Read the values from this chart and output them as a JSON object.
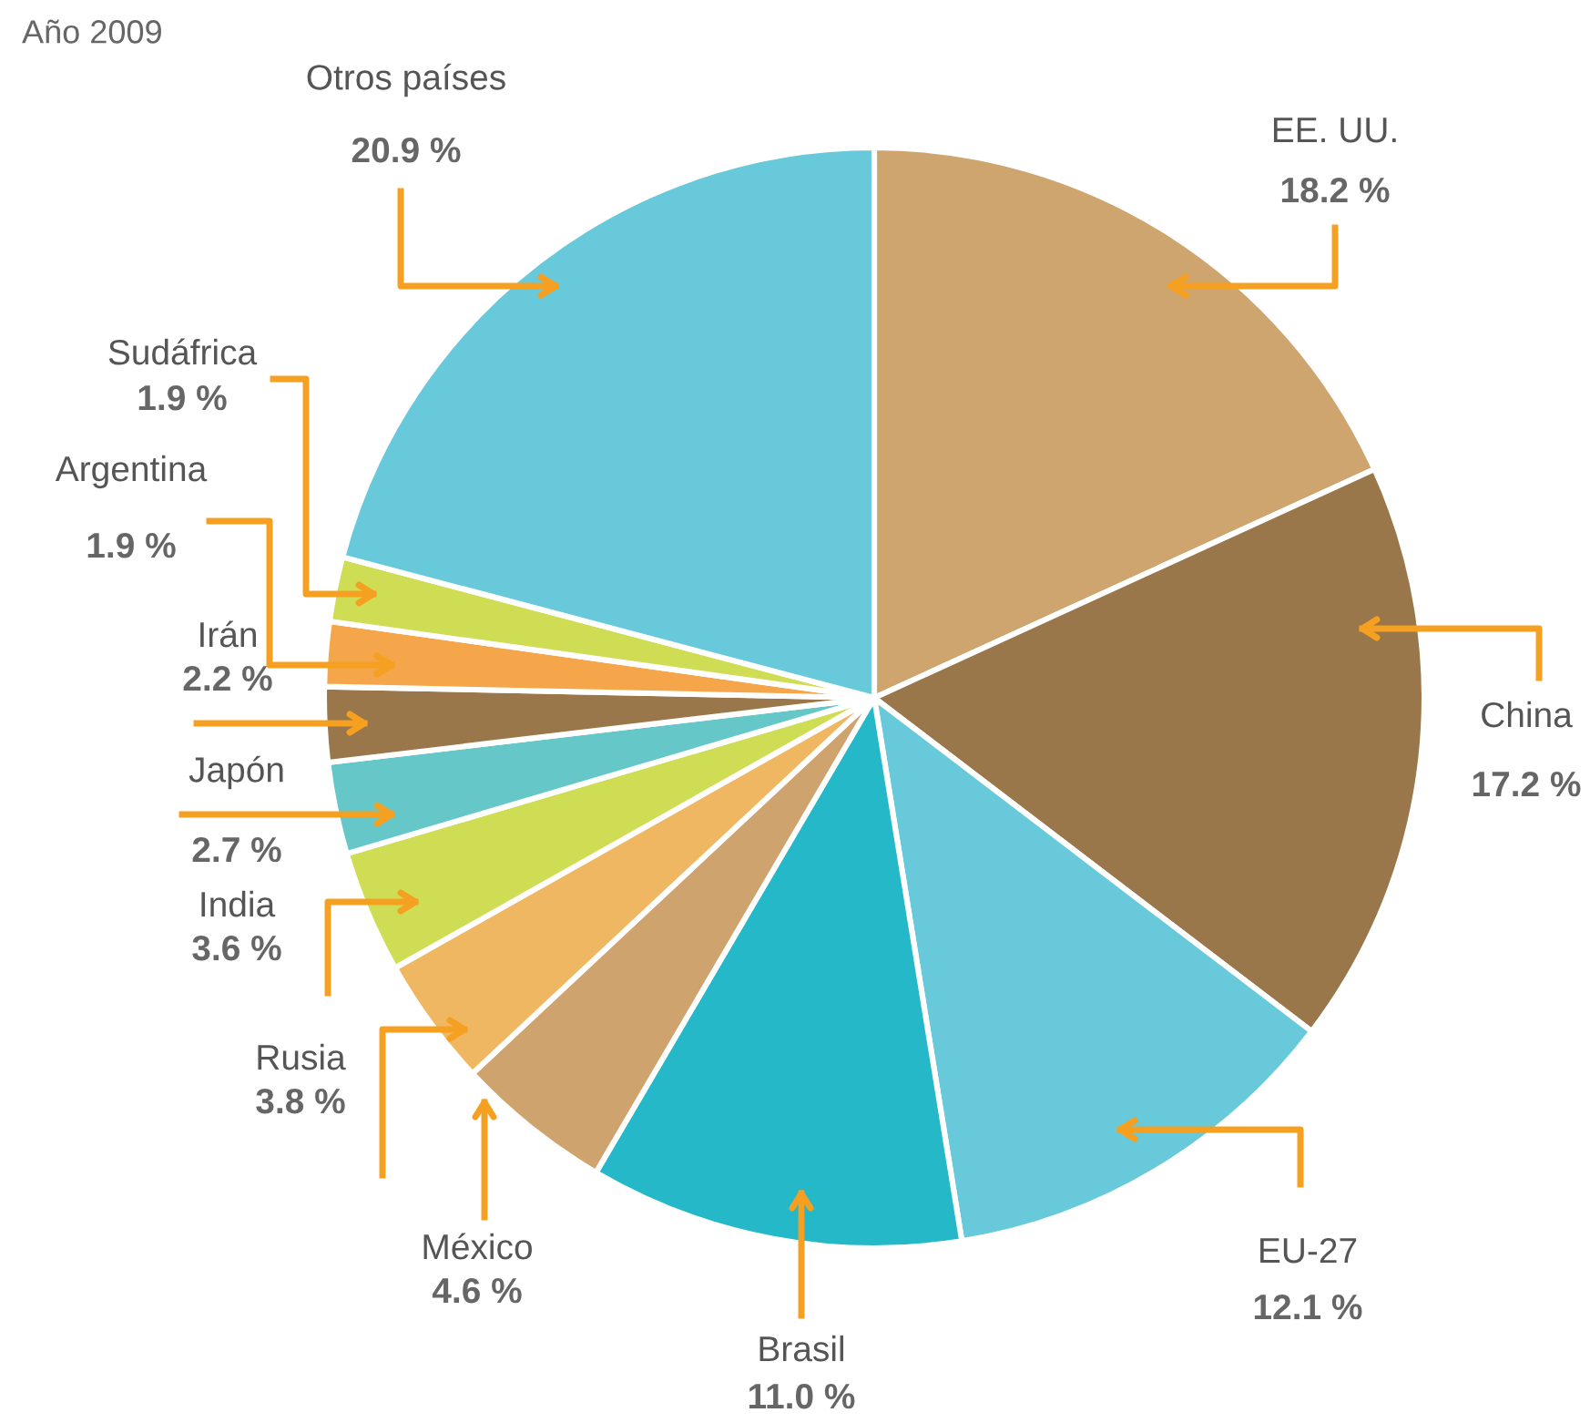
{
  "chart_data": {
    "type": "pie",
    "title": "Año 2009",
    "categories": [
      "EE. UU.",
      "China",
      "EU-27",
      "Brasil",
      "México",
      "Rusia",
      "India",
      "Japón",
      "Irán",
      "Argentina",
      "Sudáfrica",
      "Otros países"
    ],
    "values": [
      18.2,
      17.2,
      12.1,
      11.0,
      4.6,
      3.8,
      3.6,
      2.7,
      2.2,
      1.9,
      1.9,
      20.9
    ],
    "value_labels": [
      "18.2 %",
      "17.2 %",
      "12.1 %",
      "11.0 %",
      "4.6 %",
      "3.8 %",
      "3.6 %",
      "2.7 %",
      "2.2 %",
      "1.9 %",
      "1.9 %",
      "20.9 %"
    ],
    "colors": [
      "#cfa56f",
      "#9a774a",
      "#68c9db",
      "#24b8c8",
      "#cfa36d",
      "#f0b762",
      "#cfdd55",
      "#66c7c9",
      "#9a774a",
      "#f5a54a",
      "#cfdd55",
      "#68c9db"
    ]
  }
}
